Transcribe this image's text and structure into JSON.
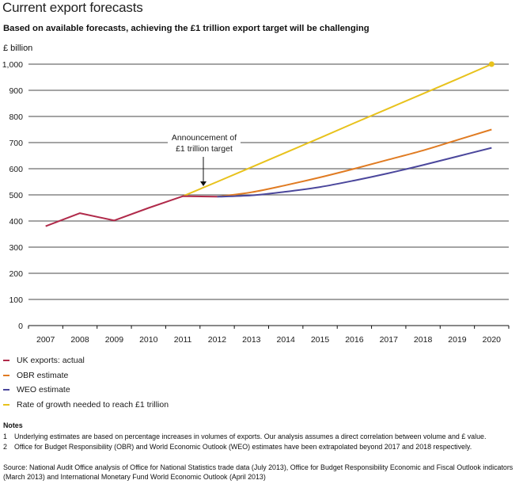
{
  "header": {
    "title": "Current export forecasts",
    "subtitle": "Based on available forecasts, achieving the £1 trillion export target will be challenging",
    "unit_label": "£ billion"
  },
  "chart_data": {
    "type": "line",
    "title": "Current export forecasts",
    "subtitle": "Based on available forecasts, achieving the £1 trillion export target will be challenging",
    "xlabel": "",
    "ylabel": "£ billion",
    "ylim": [
      0,
      1000
    ],
    "y_ticks": [
      0,
      100,
      200,
      300,
      400,
      500,
      600,
      700,
      800,
      900,
      1000
    ],
    "y_tick_labels": [
      "0",
      "100",
      "200",
      "300",
      "400",
      "500",
      "600",
      "700",
      "800",
      "900",
      "1,000"
    ],
    "grid": true,
    "categories": [
      "2007",
      "2008",
      "2009",
      "2010",
      "2011",
      "2012",
      "2013",
      "2014",
      "2015",
      "2016",
      "2017",
      "2018",
      "2019",
      "2020"
    ],
    "series": [
      {
        "name": "UK exports: actual",
        "color": "#B02A4A",
        "values": [
          380,
          430,
          402,
          450,
          495,
          493,
          null,
          null,
          null,
          null,
          null,
          null,
          null,
          null
        ]
      },
      {
        "name": "OBR estimate",
        "color": "#E07B22",
        "values": [
          null,
          null,
          null,
          null,
          null,
          493,
          510,
          537,
          567,
          600,
          635,
          670,
          710,
          750
        ]
      },
      {
        "name": "WEO estimate",
        "color": "#4B479C",
        "values": [
          null,
          null,
          null,
          null,
          null,
          493,
          498,
          512,
          530,
          555,
          583,
          614,
          647,
          680
        ]
      },
      {
        "name": "Rate of growth needed to reach £1 trillion",
        "color": "#E8C21C",
        "values": [
          null,
          null,
          null,
          null,
          495,
          550,
          606,
          662,
          718,
          775,
          831,
          887,
          943,
          1000
        ],
        "end_marker": true
      }
    ],
    "annotations": [
      {
        "text_lines": [
          "Announcement of",
          "£1 trillion target"
        ],
        "points_to": "2011.6",
        "arrow": "down"
      }
    ],
    "legend_position": "bottom-left"
  },
  "legend": [
    {
      "label": "UK exports: actual",
      "color": "#B02A4A"
    },
    {
      "label": "OBR estimate",
      "color": "#E07B22"
    },
    {
      "label": "WEO estimate",
      "color": "#4B479C"
    },
    {
      "label": "Rate of growth needed to reach £1 trillion",
      "color": "#E8C21C"
    }
  ],
  "notes": {
    "title": "Notes",
    "items": [
      {
        "num": "1",
        "text": "Underlying estimates are based on percentage increases in volumes of exports. Our analysis assumes a direct correlation between volume and £ value."
      },
      {
        "num": "2",
        "text": "Office for Budget Responsibility (OBR) and World Economic Outlook (WEO) estimates have been extrapolated beyond 2017 and 2018 respectively."
      }
    ]
  },
  "source": "Source: National Audit Office analysis of Office for National Statistics trade data (July 2013), Office for Budget Responsibility Economic and Fiscal Outlook indicators (March 2013) and International Monetary Fund World Economic Outlook (April 2013)"
}
